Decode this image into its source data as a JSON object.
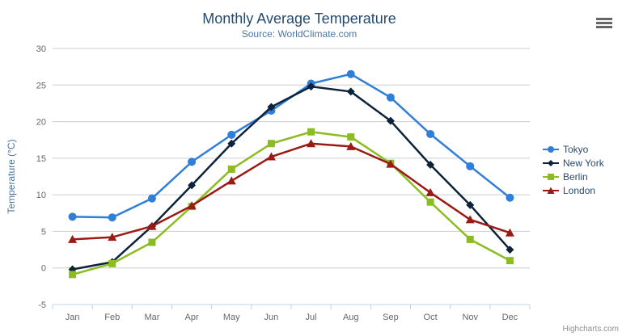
{
  "title": "Monthly Average Temperature",
  "subtitle": "Source: WorldClimate.com",
  "credits": "Highcharts.com",
  "export_menu": {
    "icon": "hamburger-menu"
  },
  "colors": {
    "title": "#274b6d",
    "subtitle": "#4d759e",
    "axis_label": "#666666",
    "axis_title": "#4d759e",
    "grid": "#cccccc",
    "axis_line": "#c0d0e0",
    "legend_text": "#274b6d",
    "credits_text": "#909090",
    "menu_icon": "#666666"
  },
  "chart_data": {
    "type": "line",
    "title": "Monthly Average Temperature",
    "subtitle": "Source: WorldClimate.com",
    "categories": [
      "Jan",
      "Feb",
      "Mar",
      "Apr",
      "May",
      "Jun",
      "Jul",
      "Aug",
      "Sep",
      "Oct",
      "Nov",
      "Dec"
    ],
    "xlabel": "",
    "ylabel": "Temperature (°C)",
    "ylim": [
      -5,
      30
    ],
    "ytick_step": 5,
    "grid": true,
    "legend_position": "right",
    "series": [
      {
        "name": "Tokyo",
        "color": "#2f7ed8",
        "marker": "circle",
        "values": [
          7.0,
          6.9,
          9.5,
          14.5,
          18.2,
          21.5,
          25.2,
          26.5,
          23.3,
          18.3,
          13.9,
          9.6
        ]
      },
      {
        "name": "New York",
        "color": "#0d233a",
        "marker": "diamond",
        "values": [
          -0.2,
          0.8,
          5.7,
          11.3,
          17.0,
          22.0,
          24.8,
          24.1,
          20.1,
          14.1,
          8.6,
          2.5
        ]
      },
      {
        "name": "Berlin",
        "color": "#8bbc21",
        "marker": "square",
        "values": [
          -0.9,
          0.6,
          3.5,
          8.4,
          13.5,
          17.0,
          18.6,
          17.9,
          14.3,
          9.0,
          3.9,
          1.0
        ]
      },
      {
        "name": "London",
        "color": "#9a1a15",
        "marker": "triangle",
        "values": [
          3.9,
          4.2,
          5.7,
          8.5,
          11.9,
          15.2,
          17.0,
          16.6,
          14.2,
          10.3,
          6.6,
          4.8
        ]
      }
    ]
  }
}
